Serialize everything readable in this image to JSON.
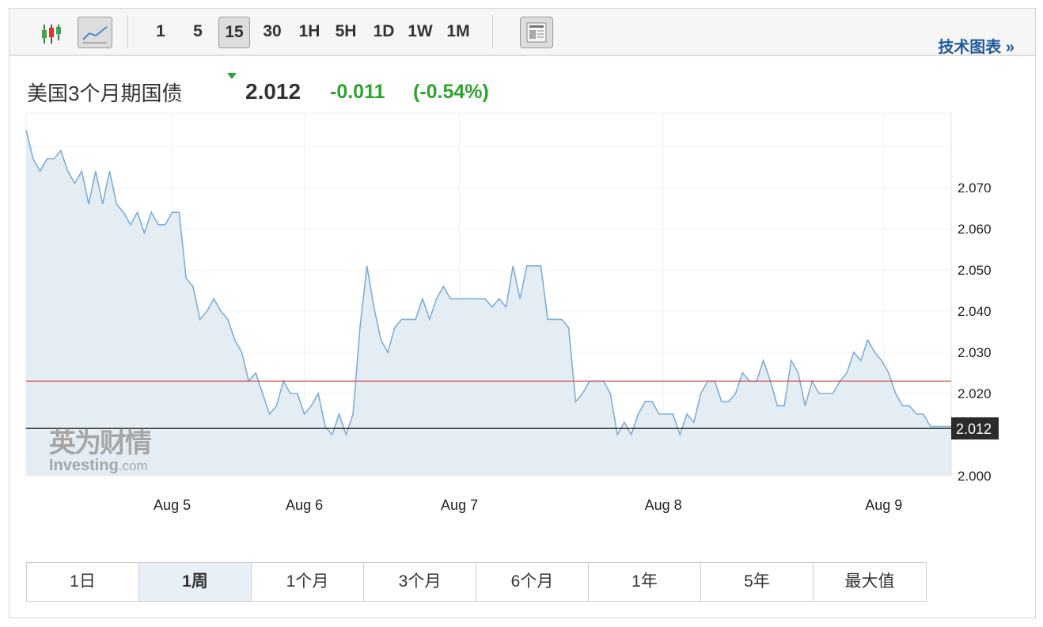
{
  "toolbar": {
    "chart_types": [
      {
        "icon": "candlestick-icon"
      },
      {
        "icon": "line-chart-icon",
        "selected": true
      }
    ],
    "intervals": [
      "1",
      "5",
      "15",
      "30",
      "1H",
      "5H",
      "1D",
      "1W",
      "1M"
    ],
    "selected_interval": "15",
    "layout_icon": "layout-icon",
    "tech_chart_label": "技术图表 »"
  },
  "header": {
    "title": "美国3个月期国债",
    "price": "2.012",
    "change": "-0.011",
    "change_pct": "(-0.54%)",
    "direction": "down",
    "change_color": "#2ea32e"
  },
  "watermark": {
    "line1": "英为财情",
    "line2": "Investing",
    "line2_suffix": ".com"
  },
  "chart_data": {
    "type": "area",
    "line_color": "#7eaed6",
    "fill_color": "#e4edf3",
    "grid": true,
    "y_ticks": [
      "2.000",
      "2.020",
      "2.030",
      "2.040",
      "2.050",
      "2.060",
      "2.070"
    ],
    "ylim": [
      2.0,
      2.088
    ],
    "x_labels": [
      {
        "label": "Aug 5",
        "index": 21
      },
      {
        "label": "Aug 6",
        "index": 40
      },
      {
        "label": "Aug 7",
        "index": 62.3
      },
      {
        "label": "Aug 8",
        "index": 91.6
      },
      {
        "label": "Aug 9",
        "index": 123.3
      }
    ],
    "reference_lines": [
      {
        "value": 2.023,
        "color": "#d04545"
      },
      {
        "value": 2.0115,
        "color": "#222",
        "label": "2.012"
      }
    ],
    "values": [
      2.084,
      2.077,
      2.074,
      2.077,
      2.077,
      2.079,
      2.074,
      2.071,
      2.074,
      2.066,
      2.074,
      2.066,
      2.074,
      2.066,
      2.064,
      2.061,
      2.064,
      2.059,
      2.064,
      2.061,
      2.061,
      2.064,
      2.064,
      2.048,
      2.046,
      2.038,
      2.04,
      2.043,
      2.04,
      2.038,
      2.033,
      2.03,
      2.023,
      2.025,
      2.02,
      2.015,
      2.017,
      2.023,
      2.02,
      2.02,
      2.015,
      2.017,
      2.02,
      2.012,
      2.01,
      2.015,
      2.01,
      2.015,
      2.036,
      2.051,
      2.041,
      2.033,
      2.03,
      2.036,
      2.038,
      2.038,
      2.038,
      2.043,
      2.038,
      2.043,
      2.046,
      2.043,
      2.043,
      2.043,
      2.043,
      2.043,
      2.043,
      2.041,
      2.043,
      2.041,
      2.051,
      2.043,
      2.051,
      2.051,
      2.051,
      2.038,
      2.038,
      2.038,
      2.036,
      2.018,
      2.02,
      2.023,
      2.023,
      2.023,
      2.02,
      2.01,
      2.013,
      2.01,
      2.015,
      2.018,
      2.018,
      2.015,
      2.015,
      2.015,
      2.01,
      2.015,
      2.013,
      2.02,
      2.023,
      2.023,
      2.018,
      2.018,
      2.02,
      2.025,
      2.023,
      2.023,
      2.028,
      2.023,
      2.017,
      2.017,
      2.028,
      2.025,
      2.017,
      2.023,
      2.02,
      2.02,
      2.02,
      2.023,
      2.025,
      2.03,
      2.028,
      2.033,
      2.03,
      2.028,
      2.025,
      2.02,
      2.017,
      2.017,
      2.015,
      2.015,
      2.012,
      2.012,
      2.012,
      2.012
    ]
  },
  "periods": [
    "1日",
    "1周",
    "1个月",
    "3个月",
    "6个月",
    "1年",
    "5年",
    "最大值"
  ],
  "selected_period": "1周"
}
